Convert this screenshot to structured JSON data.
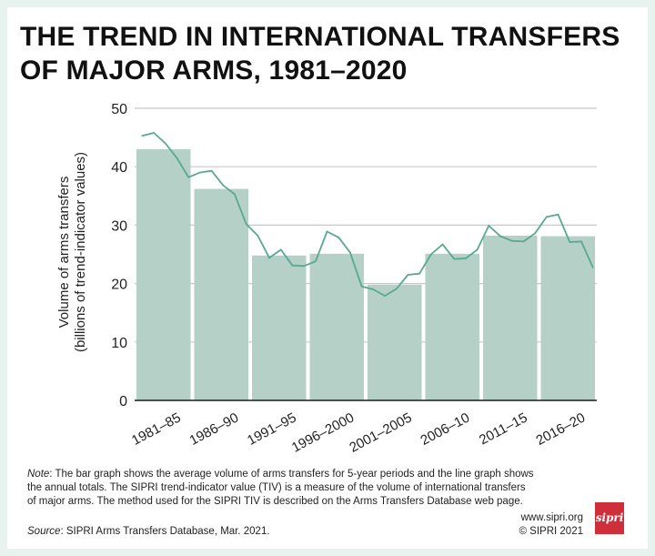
{
  "title": {
    "line1": "THE TREND IN INTERNATIONAL TRANSFERS",
    "line2": "OF MAJOR ARMS, 1981–2020"
  },
  "colors": {
    "bar": "#b4d0c7",
    "line": "#5aa892",
    "grid": "#c8c8c8",
    "axis": "#1a1a1a",
    "logo": "#cf2f3b"
  },
  "chart_data": {
    "type": "bar",
    "title": "THE TREND IN INTERNATIONAL TRANSFERS OF MAJOR ARMS, 1981–2020",
    "ylabel_line1": "Volume of arms transfers",
    "ylabel_line2": "(billions of trend-indicator values)",
    "xlabel": "",
    "ylim": [
      0,
      50
    ],
    "yticks": [
      0,
      10,
      20,
      30,
      40,
      50
    ],
    "grid": true,
    "categories": [
      "1981–85",
      "1986–90",
      "1991–95",
      "1996–2000",
      "2001–2005",
      "2006–10",
      "2011–15",
      "2016–20"
    ],
    "series": [
      {
        "name": "5-year average",
        "type": "bar",
        "values": [
          43,
          36.2,
          24.8,
          25.1,
          19.8,
          25.1,
          28.2,
          28.1
        ]
      },
      {
        "name": "Annual total",
        "type": "line",
        "x": [
          1981,
          1982,
          1983,
          1984,
          1985,
          1986,
          1987,
          1988,
          1989,
          1990,
          1991,
          1992,
          1993,
          1994,
          1995,
          1996,
          1997,
          1998,
          1999,
          2000,
          2001,
          2002,
          2003,
          2004,
          2005,
          2006,
          2007,
          2008,
          2009,
          2010,
          2011,
          2012,
          2013,
          2014,
          2015,
          2016,
          2017,
          2018,
          2019,
          2020
        ],
        "values": [
          45.3,
          45.8,
          44,
          41.5,
          38.2,
          39,
          39.3,
          36.8,
          35.3,
          30.2,
          28.2,
          24.4,
          25.8,
          23.1,
          23,
          23.8,
          28.9,
          27.9,
          25.3,
          19.5,
          19,
          17.9,
          19.1,
          21.5,
          21.7,
          25,
          26.7,
          24.2,
          24.3,
          25.8,
          29.9,
          28.1,
          27.3,
          27.2,
          28.6,
          31.4,
          31.8,
          27.1,
          27.2,
          22.8
        ]
      }
    ]
  },
  "footer": {
    "note_label": "Note",
    "note_text": ": The bar graph shows the average volume of arms transfers for 5-year periods and the line graph shows the annual totals. The SIPRI trend-indicator value (TIV) is a measure of the volume of international transfers of major arms. The method used for the SIPRI TIV is described on the Arms Transfers Database web page.",
    "source_label": "Source",
    "source_text": ": SIPRI Arms Transfers Database, Mar. 2021.",
    "website": "www.sipri.org",
    "copyright": "© SIPRI 2021",
    "logo_text": "sipri"
  }
}
